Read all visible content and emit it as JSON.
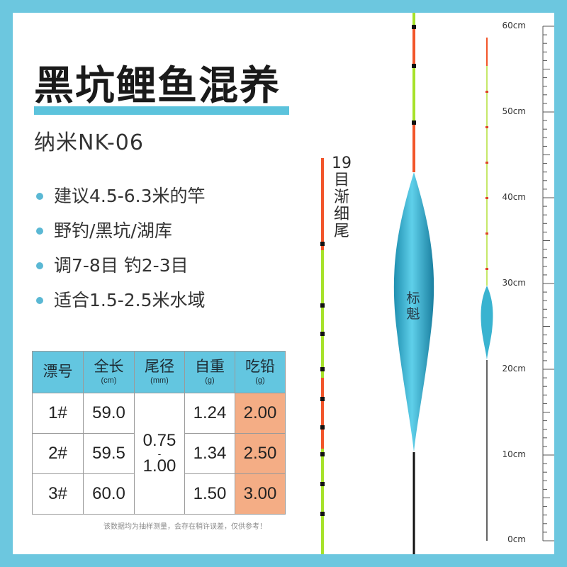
{
  "title": "黑坑鲤鱼混养",
  "model": "纳米NK-06",
  "features": [
    "建议4.5-6.3米的竿",
    "野钓/黑坑/湖库",
    "调7-8目 钓2-3目",
    "适合1.5-2.5米水域"
  ],
  "table": {
    "headers": [
      {
        "label": "漂号",
        "unit": ""
      },
      {
        "label": "全长",
        "unit": "(cm)"
      },
      {
        "label": "尾径",
        "unit": "(mm)"
      },
      {
        "label": "自重",
        "unit": "(g)"
      },
      {
        "label": "吃铅",
        "unit": "(g)"
      }
    ],
    "rows": [
      {
        "no": "1#",
        "length": "59.0",
        "weight": "1.24",
        "lead": "2.00"
      },
      {
        "no": "2#",
        "length": "59.5",
        "weight": "1.34",
        "lead": "2.50"
      },
      {
        "no": "3#",
        "length": "60.0",
        "weight": "1.50",
        "lead": "3.00"
      }
    ],
    "tail_min": "0.75",
    "tail_dash": "-",
    "tail_max": "1.00"
  },
  "note": "该数据均为抽样测量，会存在稍许误差，仅供参考！",
  "tail_label": "19目渐细尾",
  "brand_mark": "标魁",
  "ruler_labels": [
    "60cm",
    "50cm",
    "40cm",
    "30cm",
    "20cm",
    "10cm",
    "0cm"
  ],
  "colors": {
    "frame": "#6cc7df",
    "accent": "#5cc3dc",
    "header_bg": "#63c6e0",
    "lead_bg": "#f4ad85",
    "float_body": "#2aa9c9",
    "tail_orange": "#f2552a",
    "tail_green": "#a6e22a"
  }
}
